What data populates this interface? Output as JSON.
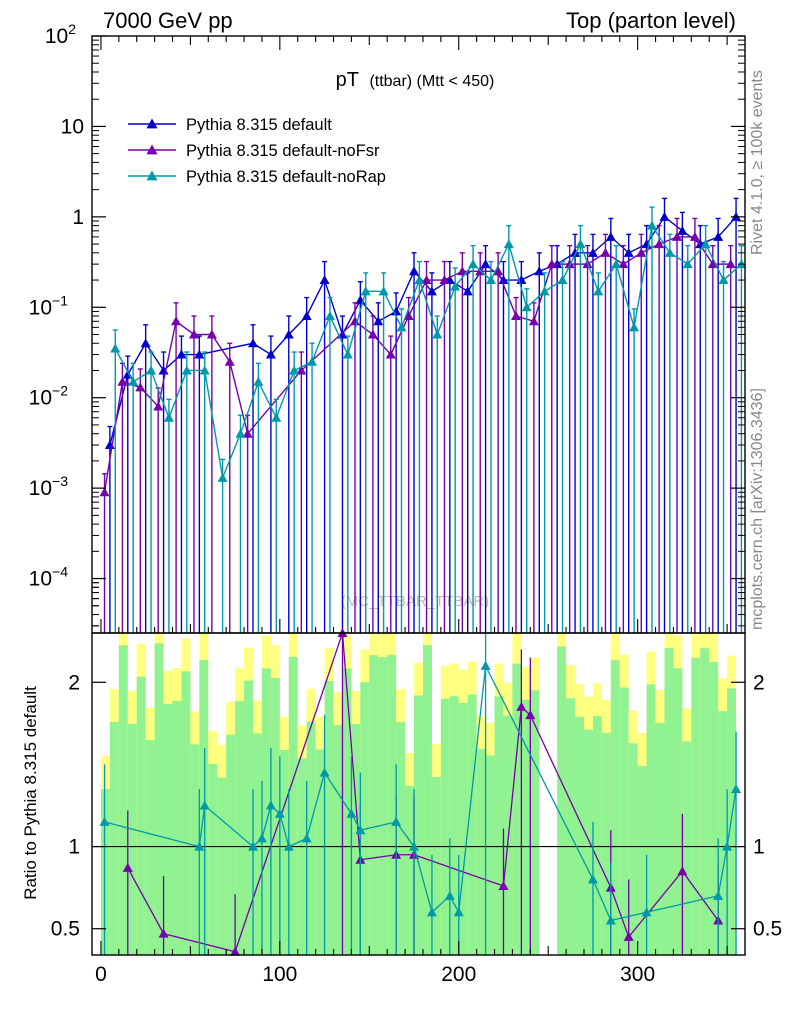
{
  "header": {
    "left": "7000 GeV pp",
    "right": "Top (parton level)"
  },
  "side_labels": {
    "rivet": "Rivet 4.1.0, ≥ 100k events",
    "mcplots": "mcplots.cern.ch [arXiv:1306.3436]"
  },
  "watermark": "(MC_TTBAR_TTBAR)",
  "colors": {
    "band_inner": "#90f290",
    "band_outer": "#ffff80",
    "default": "#0000cc",
    "noFsr": "#7700aa",
    "noRap": "#0099aa"
  },
  "chart_data": [
    {
      "type": "line",
      "title": "pT (ttbar) (Mtt < 450)",
      "title_main": "pT",
      "title_sub": "(ttbar) (Mtt < 450)",
      "xlabel": "",
      "ylabel": "",
      "yscale": "log",
      "ylim": [
        2.5e-05,
        100
      ],
      "xlim": [
        -5,
        360
      ],
      "yticks": [
        {
          "value": 100,
          "base": "10",
          "exp": "2"
        },
        {
          "value": 10,
          "base": "10",
          "exp": ""
        },
        {
          "value": 1,
          "base": "1",
          "exp": ""
        },
        {
          "value": 0.1,
          "base": "10",
          "exp": "−1"
        },
        {
          "value": 0.01,
          "base": "10",
          "exp": "−2"
        },
        {
          "value": 0.001,
          "base": "10",
          "exp": "−3"
        },
        {
          "value": 0.0001,
          "base": "10",
          "exp": "−4"
        }
      ],
      "legend_position": "top-left",
      "series": [
        {
          "name": "Pythia 8.315 default",
          "color": "#0000cc",
          "x": [
            5,
            15,
            25,
            35,
            45,
            55,
            85,
            95,
            105,
            115,
            125,
            135,
            145,
            155,
            165,
            175,
            185,
            195,
            205,
            215,
            225,
            235,
            245,
            255,
            265,
            275,
            285,
            295,
            305,
            315,
            325,
            335,
            345,
            355
          ],
          "y": [
            0.003,
            0.018,
            0.04,
            0.02,
            0.03,
            0.03,
            0.04,
            0.03,
            0.05,
            0.08,
            0.2,
            0.05,
            0.12,
            0.07,
            0.09,
            0.25,
            0.15,
            0.2,
            0.15,
            0.3,
            0.2,
            0.2,
            0.25,
            0.3,
            0.4,
            0.4,
            0.6,
            0.4,
            0.5,
            1.0,
            0.7,
            0.5,
            0.6,
            1.0
          ]
        },
        {
          "name": "Pythia 8.315 default-noFsr",
          "color": "#7700aa",
          "x": [
            2,
            12,
            22,
            32,
            42,
            52,
            62,
            72,
            82,
            112,
            142,
            152,
            162,
            172,
            182,
            192,
            202,
            212,
            222,
            232,
            242,
            252,
            262,
            272,
            282,
            292,
            302,
            312,
            322,
            332,
            342,
            352
          ],
          "y": [
            0.0009,
            0.015,
            0.013,
            0.008,
            0.07,
            0.05,
            0.05,
            0.025,
            0.004,
            0.02,
            0.07,
            0.05,
            0.03,
            0.08,
            0.2,
            0.2,
            0.25,
            0.25,
            0.25,
            0.08,
            0.07,
            0.3,
            0.3,
            0.3,
            0.4,
            0.3,
            0.4,
            0.5,
            0.6,
            0.6,
            0.3,
            0.3
          ]
        },
        {
          "name": "Pythia 8.315 default-noRap",
          "color": "#0099aa",
          "x": [
            8,
            18,
            28,
            38,
            48,
            58,
            68,
            78,
            88,
            98,
            108,
            118,
            128,
            138,
            148,
            158,
            168,
            178,
            188,
            198,
            208,
            218,
            228,
            238,
            248,
            258,
            268,
            278,
            288,
            298,
            308,
            318,
            328,
            338,
            348,
            358
          ],
          "y": [
            0.035,
            0.015,
            0.02,
            0.006,
            0.02,
            0.02,
            0.0013,
            0.004,
            0.015,
            0.006,
            0.02,
            0.025,
            0.08,
            0.03,
            0.15,
            0.15,
            0.06,
            0.2,
            0.05,
            0.17,
            0.3,
            0.2,
            0.5,
            0.1,
            0.15,
            0.2,
            0.5,
            0.15,
            0.3,
            0.06,
            0.8,
            0.4,
            0.3,
            0.5,
            0.2,
            0.3
          ]
        }
      ]
    },
    {
      "type": "line",
      "title": "",
      "ylabel": "Ratio to Pythia 8.315 default",
      "xlabel": "",
      "xlim": [
        -5,
        360
      ],
      "ylim": [
        0.34,
        2.3
      ],
      "yticks": [
        0.5,
        1,
        2
      ],
      "xticks": [
        0,
        100,
        200,
        300
      ],
      "reference_line": 1,
      "series": [
        {
          "name": "Pythia 8.315 default-noFsr",
          "color": "#7700aa",
          "x": [
            15,
            35,
            75,
            135,
            145,
            165,
            175,
            225,
            235,
            240,
            285,
            295,
            325,
            345
          ],
          "y": [
            0.87,
            0.47,
            0.36,
            2.3,
            0.92,
            0.95,
            0.95,
            0.76,
            1.85,
            1.8,
            0.75,
            0.45,
            0.85,
            0.55
          ]
        },
        {
          "name": "Pythia 8.315 default-noRap",
          "color": "#0099aa",
          "x": [
            2,
            55,
            58,
            85,
            90,
            95,
            100,
            105,
            115,
            125,
            140,
            145,
            165,
            175,
            185,
            195,
            200,
            215,
            275,
            285,
            305,
            345,
            350,
            355
          ],
          "y": [
            1.15,
            1.0,
            1.25,
            1.0,
            1.05,
            1.25,
            1.2,
            1.0,
            1.05,
            1.45,
            1.2,
            1.1,
            1.15,
            1.0,
            0.6,
            0.7,
            0.6,
            2.1,
            0.8,
            0.55,
            0.6,
            0.7,
            1.0,
            1.35
          ]
        }
      ]
    }
  ]
}
